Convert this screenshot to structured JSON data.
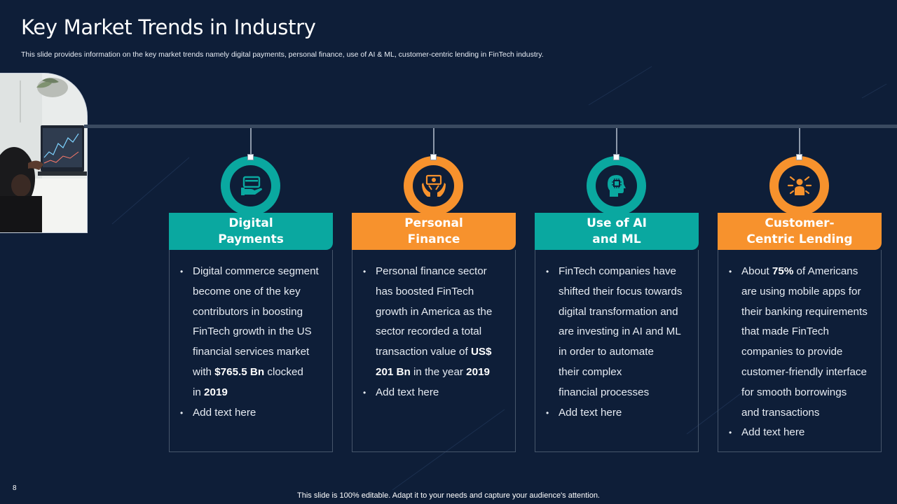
{
  "slide": {
    "title": "Key Market Trends in Industry",
    "subtitle": "This slide provides information on the key market trends namely digital payments, personal finance, use of AI & ML, customer-centric lending in FinTech industry.",
    "page_number": "8",
    "footer": "This slide is 100% editable. Adapt it to your needs and capture your audience's attention."
  },
  "colors": {
    "background": "#0e1e38",
    "teal": "#0aa8a0",
    "orange": "#f7922d",
    "bar": "#3a4a60"
  },
  "columns": [
    {
      "heading_line1": "Digital",
      "heading_line2": "Payments",
      "icon": "payment-card-hand-icon",
      "accent": "teal",
      "bullet1": {
        "lines": [
          "Digital commerce segment",
          "become one of the key",
          "contributors  in boosting",
          "FinTech growth in the US",
          "financial services market"
        ],
        "l6_pre": "with ",
        "l6_bold": "$765.5 Bn",
        "l6_post": " clocked",
        "l7_pre": "in ",
        "l7_bold": "2019"
      },
      "bullet2": "Add text here"
    },
    {
      "heading_line1": "Personal",
      "heading_line2": "Finance",
      "icon": "money-hands-icon",
      "accent": "orange",
      "bullet1": {
        "lines": [
          "Personal finance sector",
          "has boosted FinTech",
          "growth in America as the",
          "sector recorded a total"
        ],
        "l5_pre": "transaction value  of ",
        "l5_bold": "US$",
        "l6_bold": "201 Bn",
        "l6_mid": " in the year ",
        "l6_bold2": "2019"
      },
      "bullet2": "Add text here"
    },
    {
      "heading_line1": "Use of AI",
      "heading_line2": "and ML",
      "icon": "ai-head-chip-icon",
      "accent": "teal",
      "bullet1": {
        "lines": [
          "FinTech companies have",
          "shifted their focus towards",
          "digital transformation and",
          "are investing in AI and ML",
          "in order to automate",
          "their complex",
          "financial processes"
        ]
      },
      "bullet2": "Add text here"
    },
    {
      "heading_line1": "Customer-",
      "heading_line2": "Centric Lending",
      "icon": "customer-focus-icon",
      "accent": "orange",
      "bullet1": {
        "l1_pre": "About ",
        "l1_bold": "75%",
        "l1_post": " of Americans",
        "lines": [
          "are using mobile apps for",
          "their banking requirements",
          "that made FinTech",
          "companies to provide",
          "customer-friendly  interface",
          "for smooth borrowings",
          "and transactions"
        ]
      },
      "bullet2": "Add text here"
    }
  ]
}
